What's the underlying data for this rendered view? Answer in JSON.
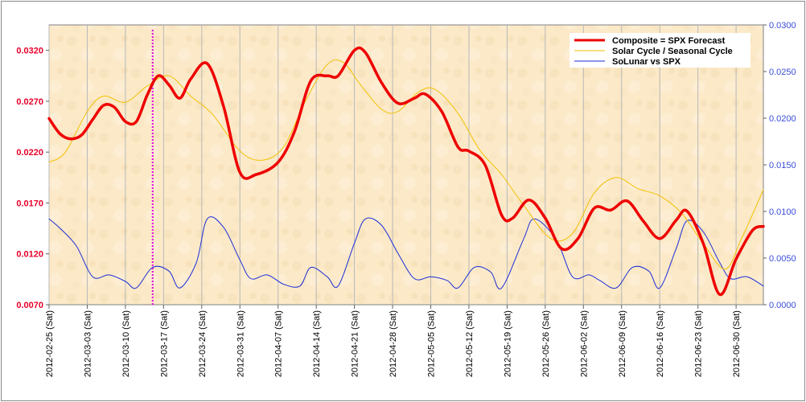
{
  "chart_data": {
    "type": "line",
    "title": "",
    "xlabel": "",
    "ylabel": "",
    "x_tick_labels": [
      "2012-02-25 (Sat)",
      "2012-03-03 (Sat)",
      "2012-03-10 (Sat)",
      "2012-03-17 (Sat)",
      "2012-03-24 (Sat)",
      "2012-03-31 (Sat)",
      "2012-04-07 (Sat)",
      "2012-04-14 (Sat)",
      "2012-04-21 (Sat)",
      "2012-04-28 (Sat)",
      "2012-05-05 (Sat)",
      "2012-05-12 (Sat)",
      "2012-05-19 (Sat)",
      "2012-05-26 (Sat)",
      "2012-06-02 (Sat)",
      "2012-06-09 (Sat)",
      "2012-06-16 (Sat)",
      "2012-06-23 (Sat)",
      "2012-06-30 (Sat)"
    ],
    "xlim": [
      "2012-02-25",
      "2012-07-05"
    ],
    "y_left": {
      "ylim": [
        0.007,
        0.0345
      ],
      "ticks": [
        "0.0070",
        "0.0120",
        "0.0170",
        "0.0220",
        "0.0270",
        "0.0320"
      ],
      "color": "#e8002a"
    },
    "y_right": {
      "ylim": [
        0.0,
        0.03
      ],
      "ticks": [
        "0.0000",
        "0.0050",
        "0.0100",
        "0.0150",
        "0.0200",
        "0.0250",
        "0.0300"
      ],
      "color": "#3a4dd8"
    },
    "grid": "vertical",
    "marker_line": {
      "x": "2012-03-15",
      "color": "#e000e0"
    },
    "legend_placement": "top-right",
    "series": [
      {
        "name": "Composite = SPX Forecast",
        "axis": "left",
        "color": "#ee0000",
        "points": [
          [
            "2012-02-25",
            0.0253
          ],
          [
            "2012-02-27",
            0.0238
          ],
          [
            "2012-02-29",
            0.0233
          ],
          [
            "2012-03-02",
            0.0237
          ],
          [
            "2012-03-04",
            0.0252
          ],
          [
            "2012-03-06",
            0.0266
          ],
          [
            "2012-03-08",
            0.0264
          ],
          [
            "2012-03-10",
            0.025
          ],
          [
            "2012-03-12",
            0.025
          ],
          [
            "2012-03-14",
            0.0276
          ],
          [
            "2012-03-16",
            0.0295
          ],
          [
            "2012-03-18",
            0.0286
          ],
          [
            "2012-03-20",
            0.0273
          ],
          [
            "2012-03-22",
            0.0292
          ],
          [
            "2012-03-25",
            0.0307
          ],
          [
            "2012-03-28",
            0.0265
          ],
          [
            "2012-03-31",
            0.02
          ],
          [
            "2012-04-03",
            0.0198
          ],
          [
            "2012-04-07",
            0.021
          ],
          [
            "2012-04-10",
            0.024
          ],
          [
            "2012-04-13",
            0.029
          ],
          [
            "2012-04-16",
            0.0295
          ],
          [
            "2012-04-18",
            0.0295
          ],
          [
            "2012-04-21",
            0.032
          ],
          [
            "2012-04-23",
            0.0318
          ],
          [
            "2012-04-26",
            0.0288
          ],
          [
            "2012-04-29",
            0.0268
          ],
          [
            "2012-05-02",
            0.0273
          ],
          [
            "2012-05-04",
            0.0277
          ],
          [
            "2012-05-07",
            0.026
          ],
          [
            "2012-05-10",
            0.0225
          ],
          [
            "2012-05-12",
            0.0221
          ],
          [
            "2012-05-15",
            0.0207
          ],
          [
            "2012-05-18",
            0.0158
          ],
          [
            "2012-05-20",
            0.0155
          ],
          [
            "2012-05-23",
            0.0173
          ],
          [
            "2012-05-26",
            0.0155
          ],
          [
            "2012-05-29",
            0.0125
          ],
          [
            "2012-06-01",
            0.0135
          ],
          [
            "2012-06-04",
            0.0165
          ],
          [
            "2012-06-07",
            0.0163
          ],
          [
            "2012-06-10",
            0.0172
          ],
          [
            "2012-06-13",
            0.0152
          ],
          [
            "2012-06-16",
            0.0135
          ],
          [
            "2012-06-19",
            0.0153
          ],
          [
            "2012-06-21",
            0.0162
          ],
          [
            "2012-06-24",
            0.013
          ],
          [
            "2012-06-27",
            0.008
          ],
          [
            "2012-06-30",
            0.0115
          ],
          [
            "2012-07-03",
            0.0143
          ],
          [
            "2012-07-05",
            0.0147
          ]
        ]
      },
      {
        "name": "Solar Cycle / Seasonal Cycle",
        "axis": "left",
        "color": "#f2c200",
        "points": [
          [
            "2012-02-25",
            0.021
          ],
          [
            "2012-02-28",
            0.022
          ],
          [
            "2012-03-03",
            0.026
          ],
          [
            "2012-03-06",
            0.0275
          ],
          [
            "2012-03-10",
            0.0269
          ],
          [
            "2012-03-14",
            0.0285
          ],
          [
            "2012-03-18",
            0.0295
          ],
          [
            "2012-03-22",
            0.0275
          ],
          [
            "2012-03-26",
            0.0257
          ],
          [
            "2012-03-31",
            0.0221
          ],
          [
            "2012-04-04",
            0.0212
          ],
          [
            "2012-04-08",
            0.0225
          ],
          [
            "2012-04-12",
            0.027
          ],
          [
            "2012-04-16",
            0.0306
          ],
          [
            "2012-04-19",
            0.0308
          ],
          [
            "2012-04-22",
            0.0287
          ],
          [
            "2012-04-26",
            0.0262
          ],
          [
            "2012-04-29",
            0.026
          ],
          [
            "2012-05-03",
            0.028
          ],
          [
            "2012-05-06",
            0.0281
          ],
          [
            "2012-05-10",
            0.0258
          ],
          [
            "2012-05-14",
            0.0222
          ],
          [
            "2012-05-18",
            0.0198
          ],
          [
            "2012-05-22",
            0.0168
          ],
          [
            "2012-05-27",
            0.0135
          ],
          [
            "2012-05-31",
            0.014
          ],
          [
            "2012-06-04",
            0.018
          ],
          [
            "2012-06-08",
            0.0195
          ],
          [
            "2012-06-12",
            0.0184
          ],
          [
            "2012-06-16",
            0.0177
          ],
          [
            "2012-06-20",
            0.016
          ],
          [
            "2012-06-24",
            0.013
          ],
          [
            "2012-06-28",
            0.0105
          ],
          [
            "2012-07-01",
            0.0135
          ],
          [
            "2012-07-05",
            0.0183
          ]
        ]
      },
      {
        "name": "SoLunar vs SPX",
        "axis": "right",
        "color": "#1c2ed8",
        "points": [
          [
            "2012-02-25",
            0.0092
          ],
          [
            "2012-02-27",
            0.0082
          ],
          [
            "2012-03-01",
            0.0063
          ],
          [
            "2012-03-04",
            0.003
          ],
          [
            "2012-03-07",
            0.0032
          ],
          [
            "2012-03-10",
            0.0025
          ],
          [
            "2012-03-12",
            0.0018
          ],
          [
            "2012-03-15",
            0.004
          ],
          [
            "2012-03-18",
            0.0036
          ],
          [
            "2012-03-20",
            0.0018
          ],
          [
            "2012-03-23",
            0.0045
          ],
          [
            "2012-03-25",
            0.0092
          ],
          [
            "2012-03-28",
            0.0083
          ],
          [
            "2012-03-31",
            0.0048
          ],
          [
            "2012-04-02",
            0.0028
          ],
          [
            "2012-04-05",
            0.0032
          ],
          [
            "2012-04-08",
            0.0022
          ],
          [
            "2012-04-11",
            0.002
          ],
          [
            "2012-04-13",
            0.004
          ],
          [
            "2012-04-16",
            0.003
          ],
          [
            "2012-04-18",
            0.002
          ],
          [
            "2012-04-21",
            0.0066
          ],
          [
            "2012-04-23",
            0.0092
          ],
          [
            "2012-04-26",
            0.0085
          ],
          [
            "2012-04-29",
            0.0055
          ],
          [
            "2012-05-02",
            0.0028
          ],
          [
            "2012-05-05",
            0.003
          ],
          [
            "2012-05-08",
            0.0026
          ],
          [
            "2012-05-10",
            0.0018
          ],
          [
            "2012-05-13",
            0.004
          ],
          [
            "2012-05-16",
            0.0035
          ],
          [
            "2012-05-18",
            0.0018
          ],
          [
            "2012-05-22",
            0.007
          ],
          [
            "2012-05-24",
            0.0092
          ],
          [
            "2012-05-28",
            0.007
          ],
          [
            "2012-05-31",
            0.003
          ],
          [
            "2012-06-03",
            0.0032
          ],
          [
            "2012-06-05",
            0.0026
          ],
          [
            "2012-06-08",
            0.0018
          ],
          [
            "2012-06-11",
            0.004
          ],
          [
            "2012-06-14",
            0.0036
          ],
          [
            "2012-06-16",
            0.0018
          ],
          [
            "2012-06-19",
            0.006
          ],
          [
            "2012-06-21",
            0.009
          ],
          [
            "2012-06-24",
            0.0078
          ],
          [
            "2012-06-27",
            0.0045
          ],
          [
            "2012-06-29",
            0.0028
          ],
          [
            "2012-07-02",
            0.003
          ],
          [
            "2012-07-05",
            0.002
          ]
        ]
      }
    ]
  }
}
